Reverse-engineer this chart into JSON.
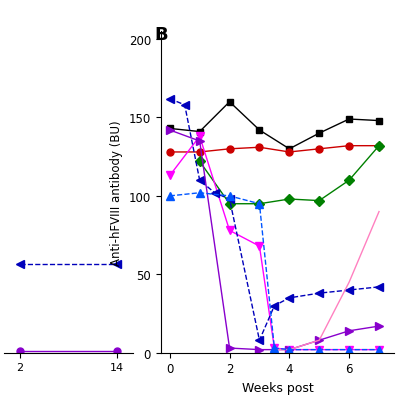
{
  "ylabel": "Anti-hFVIII antibody (BU)",
  "xlabel": "Weeks post",
  "ylim": [
    0,
    205
  ],
  "xlim": [
    -0.3,
    7.5
  ],
  "yticks": [
    0,
    50,
    100,
    150,
    200
  ],
  "xticks": [
    0,
    2,
    4,
    6
  ],
  "series": [
    {
      "label": "black_square",
      "color": "#000000",
      "marker": "s",
      "markersize": 5,
      "x": [
        0,
        1,
        2,
        3,
        4,
        5,
        6,
        7
      ],
      "y": [
        143,
        141,
        160,
        142,
        130,
        140,
        149,
        148
      ],
      "linestyle": "-"
    },
    {
      "label": "red_circle",
      "color": "#cc0000",
      "marker": "o",
      "markersize": 5,
      "x": [
        0,
        1,
        2,
        3,
        4,
        5,
        6,
        7
      ],
      "y": [
        128,
        128,
        130,
        131,
        128,
        130,
        132,
        132
      ],
      "linestyle": "-"
    },
    {
      "label": "green_diamond",
      "color": "#008000",
      "marker": "D",
      "markersize": 5,
      "x": [
        1,
        2,
        3,
        4,
        5,
        6,
        7
      ],
      "y": [
        122,
        95,
        95,
        98,
        97,
        110,
        132
      ],
      "linestyle": "-"
    },
    {
      "label": "magenta_invtriangle",
      "color": "#ff00ff",
      "marker": "v",
      "markersize": 6,
      "x": [
        0,
        1,
        2,
        3,
        3.5,
        4,
        5,
        6,
        7
      ],
      "y": [
        113,
        138,
        78,
        68,
        3,
        2,
        2,
        2,
        2
      ],
      "linestyle": "-"
    },
    {
      "label": "dark_blue_dashed",
      "color": "#0000bb",
      "marker": "<",
      "markersize": 6,
      "x": [
        0,
        0.5,
        1,
        1.5,
        2,
        3,
        3.5,
        4,
        5,
        6,
        7
      ],
      "y": [
        162,
        158,
        110,
        102,
        98,
        8,
        30,
        35,
        38,
        40,
        42
      ],
      "linestyle": "--"
    },
    {
      "label": "purple_triangle_right",
      "color": "#8800cc",
      "marker": ">",
      "markersize": 6,
      "x": [
        0,
        1,
        2,
        3,
        4,
        5,
        6,
        7
      ],
      "y": [
        142,
        135,
        3,
        2,
        2,
        8,
        14,
        17
      ],
      "linestyle": "-"
    },
    {
      "label": "pink_rising",
      "color": "#ff80c0",
      "marker": "None",
      "markersize": 4,
      "x": [
        3.5,
        4,
        5,
        6,
        7
      ],
      "y": [
        2,
        2,
        8,
        45,
        90
      ],
      "linestyle": "-"
    },
    {
      "label": "blue_triangle_up",
      "color": "#0055ff",
      "marker": "^",
      "markersize": 6,
      "x": [
        0,
        1,
        2,
        3,
        3.5,
        4,
        5,
        6,
        7
      ],
      "y": [
        100,
        102,
        100,
        95,
        3,
        2,
        2,
        2,
        2
      ],
      "linestyle": "--"
    }
  ],
  "left_panel": {
    "xlim": [
      0,
      16
    ],
    "xticks": [
      2,
      14
    ],
    "series": [
      {
        "color": "#0000bb",
        "linestyle": "--",
        "marker": "<",
        "markersize": 6,
        "x": [
          2,
          14
        ],
        "y": [
          85,
          85
        ]
      },
      {
        "color": "#8800cc",
        "linestyle": "-",
        "marker": "o",
        "markersize": 5,
        "x": [
          2,
          14
        ],
        "y": [
          2,
          2
        ]
      }
    ]
  }
}
